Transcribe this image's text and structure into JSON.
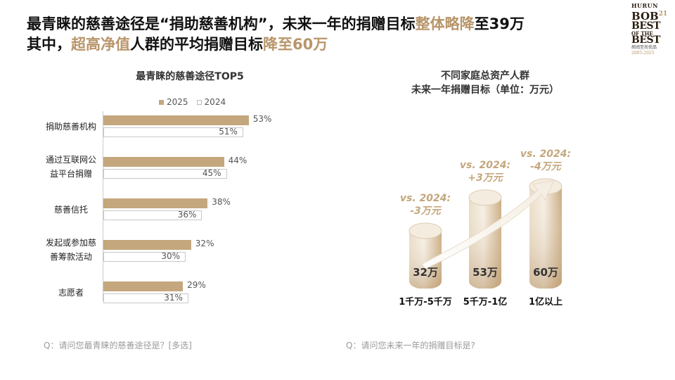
{
  "headline": {
    "line1_part1": "最青睐的慈善途径是“捐助慈善机构”，未来一年的捐赠目标",
    "line1_highlight": "整体略降",
    "line1_part2": "至39万",
    "line2_part1": "其中，",
    "line2_highlight1": "超高净值",
    "line2_part2": "人群的平均捐赠目标",
    "line2_highlight2": "降至60万"
  },
  "logo": {
    "hurun": "HURUN",
    "bob": "BOB",
    "bob_sup": "21",
    "best1": "BEST",
    "ofthe": "OF THE",
    "best2": "BEST",
    "cn": "胡润至尚优品",
    "years": "2005-2025"
  },
  "colors": {
    "accent": "#b8956a",
    "bar2025": "#c4a77d",
    "bar2024_border": "#c8c8c8"
  },
  "chart_data": [
    {
      "type": "bar",
      "orientation": "horizontal",
      "title": "最青睐的慈善途径TOP5",
      "categories": [
        "捐助慈善机构",
        "通过互联网公益平台捐赠",
        "慈善信托",
        "发起或参加慈善筹款活动",
        "志愿者"
      ],
      "category_lines": [
        [
          "捐助慈善机构"
        ],
        [
          "通过互联网公",
          "益平台捐赠"
        ],
        [
          "慈善信托"
        ],
        [
          "发起或参加慈",
          "善筹款活动"
        ],
        [
          "志愿者"
        ]
      ],
      "series": [
        {
          "name": "2025",
          "values": [
            53,
            44,
            38,
            32,
            29
          ],
          "labels": [
            "53%",
            "44%",
            "38%",
            "32%",
            "29%"
          ]
        },
        {
          "name": "2024",
          "values": [
            51,
            45,
            36,
            30,
            31
          ],
          "labels": [
            "51%",
            "45%",
            "36%",
            "30%",
            "31%"
          ]
        }
      ],
      "unit": "%",
      "legend": "top",
      "question": "Q：请问您最青睐的慈善途径是？[多选]"
    },
    {
      "type": "bar",
      "style": "cylinder",
      "title_line1": "不同家庭总资产人群",
      "title_line2": "未来一年捐赠目标（单位：万元）",
      "categories": [
        "1千万-5千万",
        "5千万-1亿",
        "1亿以上"
      ],
      "values": [
        32,
        53,
        60
      ],
      "value_labels": [
        "32万",
        "53万",
        "60万"
      ],
      "annotations": [
        [
          "vs. 2024:",
          "-3万元"
        ],
        [
          "vs. 2024:",
          "+3万元"
        ],
        [
          "vs. 2024:",
          "-4万元"
        ]
      ],
      "question": "Q：请问您未来一年的捐赠目标是?"
    }
  ]
}
